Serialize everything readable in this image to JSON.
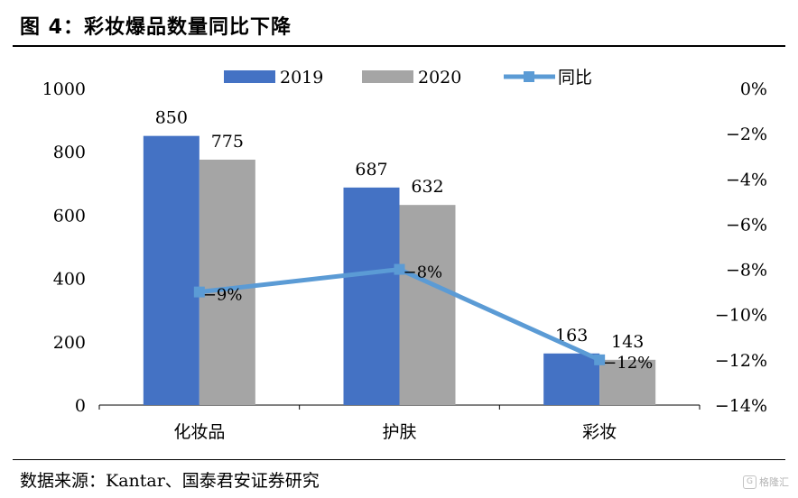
{
  "figure": {
    "title": "图 4：彩妆爆品数量同比下降",
    "source": "数据来源：Kantar、国泰君安证券研究",
    "watermark": "格隆汇"
  },
  "colors": {
    "2019": "#4472C4",
    "2020": "#A5A5A5",
    "yoy": "#5B9BD5"
  },
  "chart_data": {
    "type": "bar",
    "categories": [
      "化妆品",
      "护肤",
      "彩妆"
    ],
    "series": [
      {
        "name": "2019",
        "type": "bar",
        "values": [
          850,
          687,
          163
        ]
      },
      {
        "name": "2020",
        "type": "bar",
        "values": [
          775,
          632,
          143
        ]
      },
      {
        "name": "同比",
        "type": "line",
        "axis": "right",
        "values": [
          -9,
          -8,
          -12
        ],
        "labels": [
          "-9%",
          "-8%",
          "-12%"
        ]
      }
    ],
    "title": "",
    "xlabel": "",
    "ylabel": "",
    "ylim": [
      0,
      1000
    ],
    "yticks": [
      "0",
      "200",
      "400",
      "600",
      "800",
      "1000"
    ],
    "y2lim": [
      -14,
      0
    ],
    "y2ticks": [
      "0%",
      "-2%",
      "-4%",
      "-6%",
      "-8%",
      "-10%",
      "-12%",
      "-14%"
    ],
    "legend_position": "top",
    "grid": false
  }
}
